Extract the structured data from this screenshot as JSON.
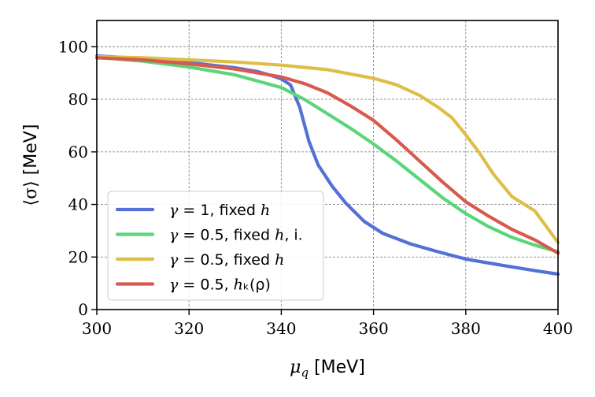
{
  "chart_data": {
    "type": "line",
    "title": "",
    "xlabel": "μ_q [MeV]",
    "ylabel": "⟨σ⟩ [MeV]",
    "xlabel_parts": {
      "symbol": "μ",
      "subscript": "q",
      "unit": " [MeV]"
    },
    "ylabel_parts": {
      "symbol": "⟨σ⟩",
      "unit": " [MeV]"
    },
    "xlim": [
      300,
      400
    ],
    "ylim": [
      0,
      110
    ],
    "xticks": [
      300,
      320,
      340,
      360,
      380,
      400
    ],
    "yticks": [
      0,
      20,
      40,
      60,
      80,
      100
    ],
    "grid": true,
    "legend_position": "lower-left",
    "series": [
      {
        "name": "γ = 1, fixed h",
        "color": "#5470d6",
        "x": [
          300,
          310,
          320,
          330,
          335,
          338,
          340,
          342,
          344,
          346,
          348,
          351,
          354,
          358,
          362,
          368,
          374,
          380,
          388,
          395,
          400
        ],
        "y": [
          96.5,
          95.5,
          94.0,
          92.0,
          90.5,
          89.0,
          87.8,
          85.5,
          77.0,
          64.0,
          55.0,
          47.0,
          40.5,
          33.5,
          29.0,
          25.0,
          22.0,
          19.2,
          16.8,
          14.8,
          13.5
        ]
      },
      {
        "name": "γ = 0.5, fixed h, i.",
        "color": "#5ad57a",
        "x": [
          300,
          310,
          320,
          330,
          340,
          345,
          350,
          355,
          360,
          365,
          370,
          375,
          380,
          385,
          390,
          395,
          400
        ],
        "y": [
          96.0,
          94.5,
          92.3,
          89.3,
          84.5,
          80.0,
          74.5,
          69.0,
          63.0,
          56.5,
          49.5,
          42.5,
          36.5,
          31.5,
          27.5,
          24.5,
          22.0
        ]
      },
      {
        "name": "γ = 0.5, fixed h",
        "color": "#dfbe48",
        "x": [
          300,
          310,
          320,
          330,
          340,
          350,
          360,
          365,
          370,
          374,
          377,
          380,
          383,
          386,
          390,
          395,
          400
        ],
        "y": [
          96.2,
          95.8,
          95.0,
          94.2,
          93.0,
          91.3,
          88.0,
          85.5,
          81.5,
          77.0,
          73.0,
          66.5,
          59.5,
          51.5,
          43.0,
          37.5,
          25.5
        ]
      },
      {
        "name": "γ = 0.5, h_k(ρ)",
        "color": "#d85a4e",
        "x": [
          300,
          310,
          320,
          330,
          340,
          345,
          350,
          355,
          360,
          365,
          370,
          375,
          380,
          385,
          390,
          395,
          400
        ],
        "y": [
          95.8,
          95.0,
          93.5,
          91.5,
          88.5,
          86.0,
          82.5,
          77.5,
          72.0,
          64.5,
          56.5,
          48.5,
          41.0,
          35.5,
          30.5,
          26.5,
          21.5
        ]
      }
    ],
    "legend": [
      {
        "symbol": "γ",
        "eq": " = 1, ",
        "text": "fixed ",
        "var": "h",
        "suffix": ""
      },
      {
        "symbol": "γ",
        "eq": " = 0.5, ",
        "text": "fixed ",
        "var": "h",
        "suffix": ", i."
      },
      {
        "symbol": "γ",
        "eq": " = 0.5, ",
        "text": "fixed ",
        "var": "h",
        "suffix": ""
      },
      {
        "symbol": "γ",
        "eq": " = 0.5, ",
        "text": "",
        "var": "h",
        "suffix": "ₖ(ρ)"
      }
    ]
  }
}
